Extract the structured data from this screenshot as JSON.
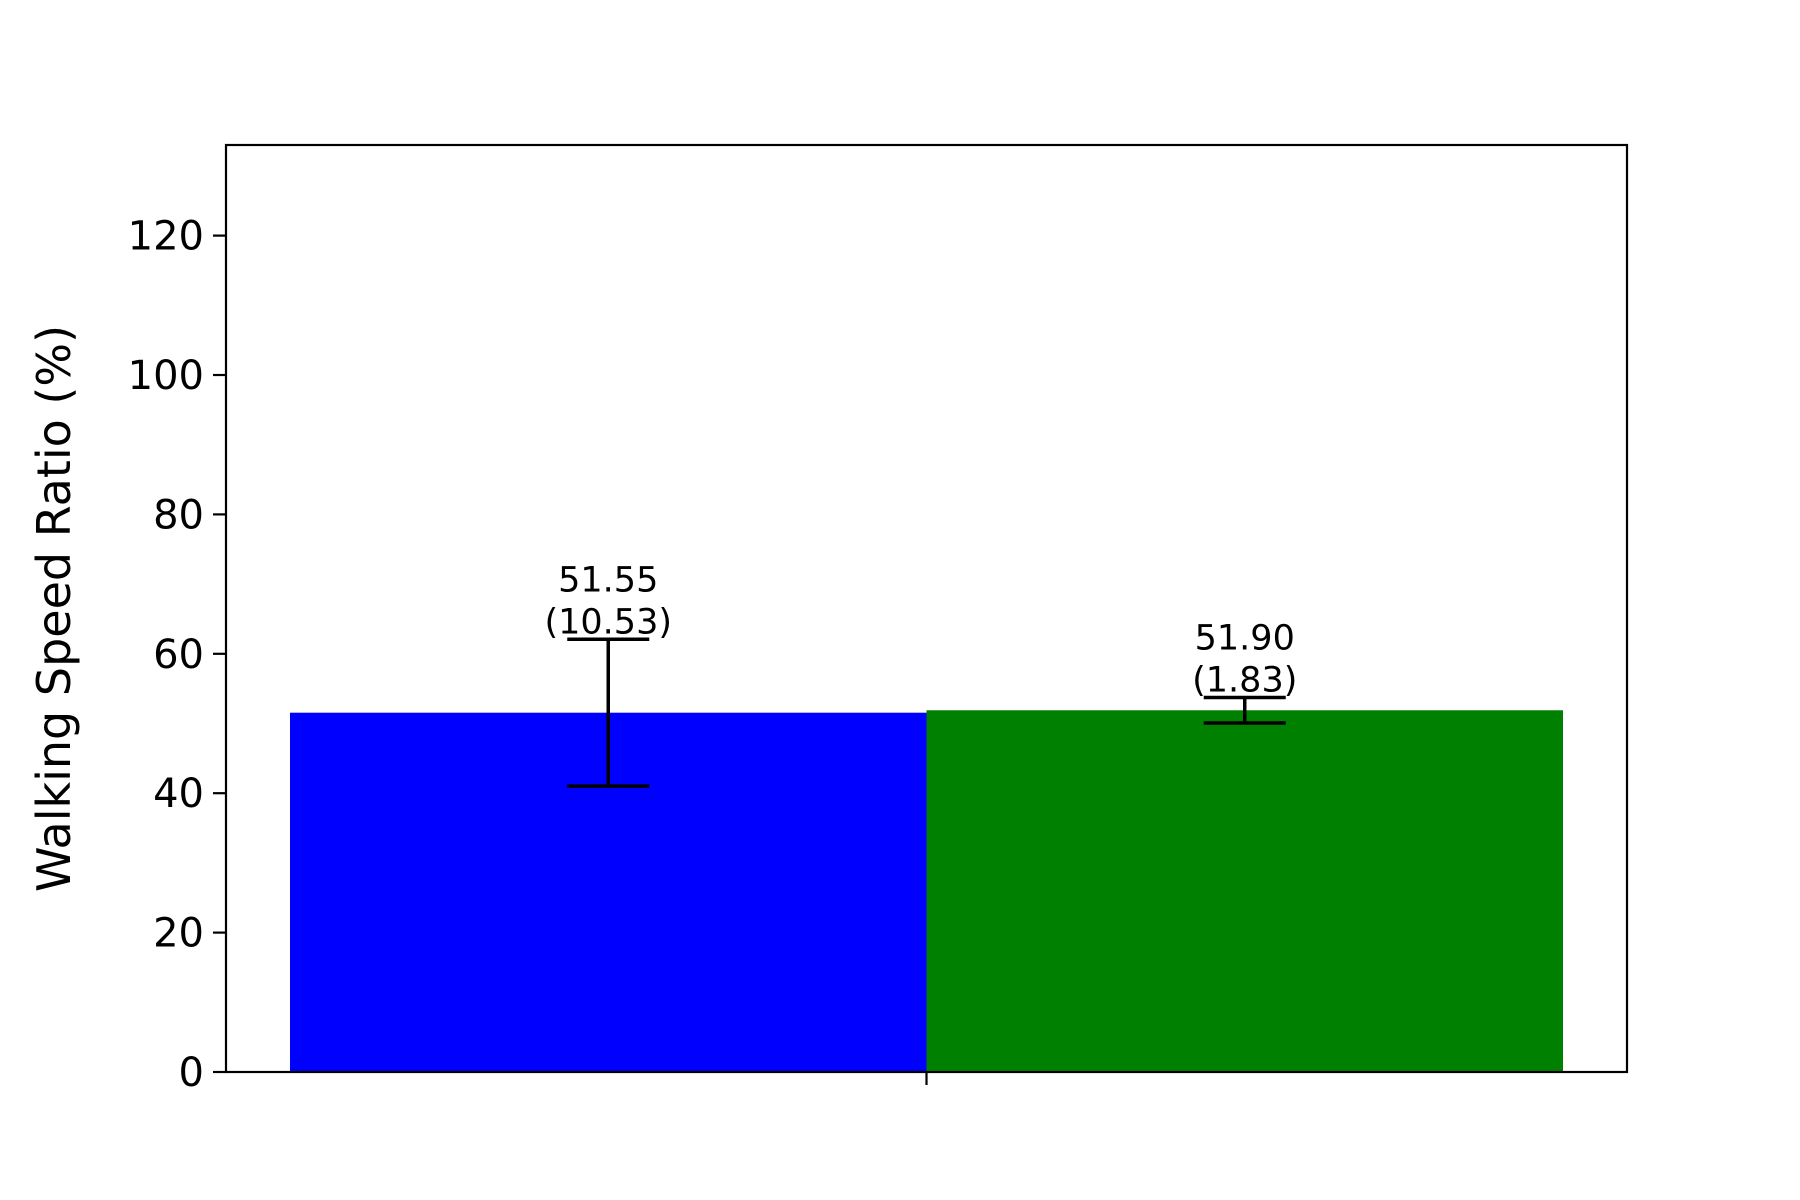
{
  "chart_data": {
    "type": "bar",
    "title": "",
    "xlabel": "",
    "ylabel": "Walking Speed Ratio (%)",
    "ylim": [
      0,
      133
    ],
    "yticks": [
      0,
      20,
      40,
      60,
      80,
      100,
      120
    ],
    "grid": false,
    "legend": "none",
    "series": [
      {
        "value": 51.55,
        "error": 10.53,
        "label_value": "51.55",
        "label_error": "(10.53)",
        "color": "#0000ff"
      },
      {
        "value": 51.9,
        "error": 1.83,
        "label_value": "51.90",
        "label_error": "(1.83)",
        "color": "#008000"
      }
    ]
  }
}
